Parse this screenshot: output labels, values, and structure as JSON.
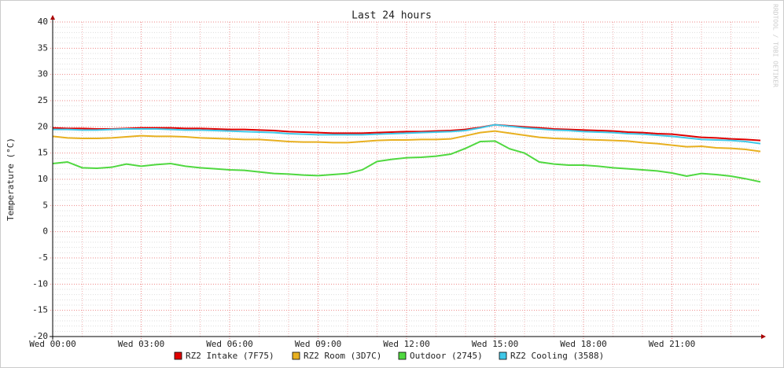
{
  "chart_data": {
    "type": "line",
    "title": "Last 24 hours",
    "y_label": "Temperature (°C)",
    "watermark": "RRDTOOL / TOBI OETIKER",
    "x": [
      0,
      0.5,
      1,
      1.5,
      2,
      2.5,
      3,
      3.5,
      4,
      4.5,
      5,
      5.5,
      6,
      6.5,
      7,
      7.5,
      8,
      8.5,
      9,
      9.5,
      10,
      10.5,
      11,
      11.5,
      12,
      12.5,
      13,
      13.5,
      14,
      14.5,
      15,
      15.5,
      16,
      16.5,
      17,
      17.5,
      18,
      18.5,
      19,
      19.5,
      20,
      20.5,
      21,
      21.5,
      22,
      22.5,
      23,
      23.5,
      24
    ],
    "xlim": [
      0,
      24
    ],
    "xticks": [
      {
        "value": 0,
        "label": "Wed 00:00"
      },
      {
        "value": 3,
        "label": "Wed 03:00"
      },
      {
        "value": 6,
        "label": "Wed 06:00"
      },
      {
        "value": 9,
        "label": "Wed 09:00"
      },
      {
        "value": 12,
        "label": "Wed 12:00"
      },
      {
        "value": 15,
        "label": "Wed 15:00"
      },
      {
        "value": 18,
        "label": "Wed 18:00"
      },
      {
        "value": 21,
        "label": "Wed 21:00"
      }
    ],
    "ylim": [
      -20,
      40
    ],
    "yticks": [
      40,
      35,
      30,
      25,
      20,
      15,
      10,
      5,
      0,
      -5,
      -10,
      -15,
      -20
    ],
    "grid": true,
    "series": [
      {
        "name": "RZ2 Intake (7F75)",
        "color": "#e00000",
        "values": [
          19.8,
          19.7,
          19.7,
          19.6,
          19.6,
          19.7,
          19.8,
          19.8,
          19.8,
          19.7,
          19.7,
          19.6,
          19.5,
          19.5,
          19.4,
          19.3,
          19.1,
          19.0,
          18.9,
          18.8,
          18.8,
          18.8,
          18.9,
          19.0,
          19.1,
          19.1,
          19.2,
          19.3,
          19.5,
          19.9,
          20.4,
          20.2,
          20.0,
          19.8,
          19.6,
          19.5,
          19.4,
          19.3,
          19.2,
          19.0,
          18.9,
          18.7,
          18.6,
          18.3,
          18.0,
          17.9,
          17.7,
          17.6,
          17.4
        ]
      },
      {
        "name": "RZ2 Room (3D7C)",
        "color": "#e8b020",
        "values": [
          18.2,
          17.9,
          17.8,
          17.8,
          17.9,
          18.1,
          18.3,
          18.2,
          18.2,
          18.1,
          17.9,
          17.8,
          17.7,
          17.6,
          17.6,
          17.4,
          17.2,
          17.1,
          17.1,
          17.0,
          17.0,
          17.2,
          17.4,
          17.5,
          17.5,
          17.6,
          17.6,
          17.7,
          18.3,
          18.9,
          19.2,
          18.8,
          18.4,
          18.0,
          17.8,
          17.7,
          17.6,
          17.5,
          17.4,
          17.3,
          17.0,
          16.8,
          16.5,
          16.2,
          16.3,
          16.0,
          15.9,
          15.7,
          15.3
        ]
      },
      {
        "name": "Outdoor (2745)",
        "color": "#50d840",
        "values": [
          13.0,
          13.3,
          12.2,
          12.1,
          12.3,
          12.9,
          12.5,
          12.8,
          13.0,
          12.5,
          12.2,
          12.0,
          11.8,
          11.7,
          11.4,
          11.1,
          11.0,
          10.8,
          10.7,
          10.9,
          11.1,
          11.8,
          13.4,
          13.8,
          14.1,
          14.2,
          14.4,
          14.8,
          15.9,
          17.2,
          17.3,
          15.8,
          15.0,
          13.3,
          12.9,
          12.7,
          12.7,
          12.5,
          12.2,
          12.0,
          11.8,
          11.6,
          11.2,
          10.6,
          11.1,
          10.9,
          10.6,
          10.1,
          9.5
        ]
      },
      {
        "name": "RZ2 Cooling (3588)",
        "color": "#40c8e8",
        "values": [
          19.5,
          19.5,
          19.4,
          19.4,
          19.5,
          19.6,
          19.6,
          19.6,
          19.5,
          19.4,
          19.4,
          19.3,
          19.2,
          19.1,
          19.0,
          18.9,
          18.7,
          18.6,
          18.5,
          18.5,
          18.5,
          18.5,
          18.6,
          18.7,
          18.8,
          18.9,
          19.0,
          19.1,
          19.3,
          19.8,
          20.4,
          20.1,
          19.8,
          19.6,
          19.4,
          19.3,
          19.1,
          19.0,
          18.9,
          18.7,
          18.6,
          18.4,
          18.2,
          17.9,
          17.6,
          17.5,
          17.4,
          17.2,
          16.8
        ]
      }
    ]
  }
}
